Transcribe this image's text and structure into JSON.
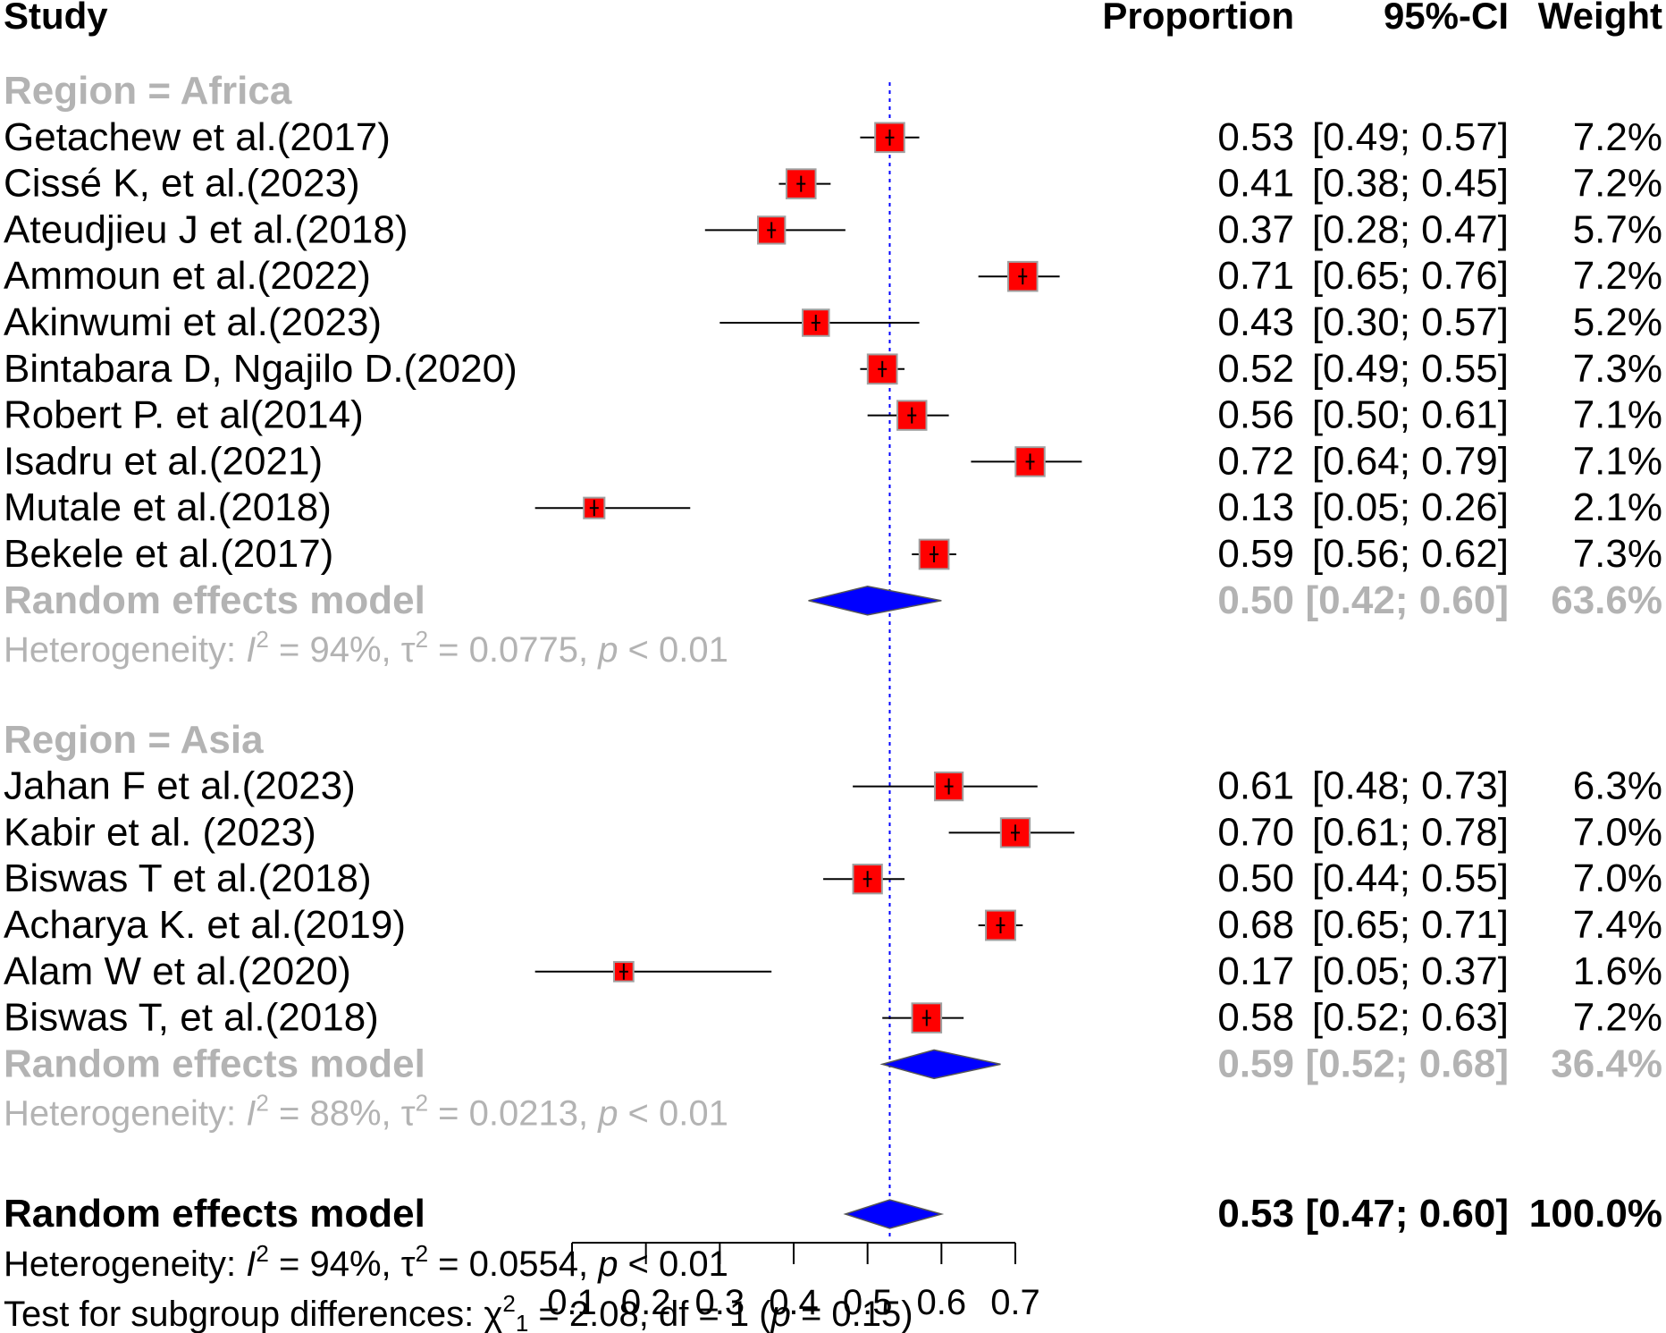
{
  "headers": {
    "study": "Study",
    "proportion": "Proportion",
    "ci": "95%-CI",
    "weight": "Weight"
  },
  "chart_data": {
    "type": "forest",
    "xlim": [
      0.1,
      0.7
    ],
    "reference_line": 0.53,
    "axis_ticks": [
      {
        "value": 0.1,
        "label": "0.1"
      },
      {
        "value": 0.2,
        "label": "0.2"
      },
      {
        "value": 0.3,
        "label": "0.3"
      },
      {
        "value": 0.4,
        "label": "0.4"
      },
      {
        "value": 0.5,
        "label": "0.5"
      },
      {
        "value": 0.6,
        "label": "0.6"
      },
      {
        "value": 0.7,
        "label": "0.7"
      }
    ],
    "groups": [
      {
        "label": "Region = Africa",
        "studies": [
          {
            "study": "Getachew et al.(2017)",
            "prop": 0.53,
            "lo": 0.49,
            "hi": 0.57,
            "prop_text": "0.53",
            "ci_text": "[0.49; 0.57]",
            "weight": 7.2,
            "weight_text": "7.2%"
          },
          {
            "study": "Cissé K, et al.(2023)",
            "prop": 0.41,
            "lo": 0.38,
            "hi": 0.45,
            "prop_text": "0.41",
            "ci_text": "[0.38; 0.45]",
            "weight": 7.2,
            "weight_text": "7.2%"
          },
          {
            "study": "Ateudjieu J et al.(2018)",
            "prop": 0.37,
            "lo": 0.28,
            "hi": 0.47,
            "prop_text": "0.37",
            "ci_text": "[0.28; 0.47]",
            "weight": 5.7,
            "weight_text": "5.7%"
          },
          {
            "study": "Ammoun et al.(2022)",
            "prop": 0.71,
            "lo": 0.65,
            "hi": 0.76,
            "prop_text": "0.71",
            "ci_text": "[0.65; 0.76]",
            "weight": 7.2,
            "weight_text": "7.2%"
          },
          {
            "study": "Akinwumi et al.(2023)",
            "prop": 0.43,
            "lo": 0.3,
            "hi": 0.57,
            "prop_text": "0.43",
            "ci_text": "[0.30; 0.57]",
            "weight": 5.2,
            "weight_text": "5.2%"
          },
          {
            "study": "Bintabara D, Ngajilo D.(2020)",
            "prop": 0.52,
            "lo": 0.49,
            "hi": 0.55,
            "prop_text": "0.52",
            "ci_text": "[0.49; 0.55]",
            "weight": 7.3,
            "weight_text": "7.3%"
          },
          {
            "study": "Robert P. et al(2014)",
            "prop": 0.56,
            "lo": 0.5,
            "hi": 0.61,
            "prop_text": "0.56",
            "ci_text": "[0.50; 0.61]",
            "weight": 7.1,
            "weight_text": "7.1%"
          },
          {
            "study": "Isadru et al.(2021)",
            "prop": 0.72,
            "lo": 0.64,
            "hi": 0.79,
            "prop_text": "0.72",
            "ci_text": "[0.64; 0.79]",
            "weight": 7.1,
            "weight_text": "7.1%"
          },
          {
            "study": "Mutale et al.(2018)",
            "prop": 0.13,
            "lo": 0.05,
            "hi": 0.26,
            "prop_text": "0.13",
            "ci_text": "[0.05; 0.26]",
            "weight": 2.1,
            "weight_text": "2.1%"
          },
          {
            "study": " Bekele et al.(2017)",
            "prop": 0.59,
            "lo": 0.56,
            "hi": 0.62,
            "prop_text": "0.59",
            "ci_text": "[0.56; 0.62]",
            "weight": 7.3,
            "weight_text": "7.3%"
          }
        ],
        "pooled": {
          "label": "Random effects model",
          "prop": 0.5,
          "lo": 0.42,
          "hi": 0.6,
          "prop_text": "0.50",
          "ci_text": "[0.42; 0.60]",
          "weight_text": "63.6%"
        },
        "heterogeneity": {
          "prefix": "Heterogeneity: ",
          "I2": "94%",
          "tau2": "0.0775",
          "p": "0.01"
        }
      },
      {
        "label": "Region = Asia",
        "studies": [
          {
            "study": "Jahan F et al.(2023)",
            "prop": 0.61,
            "lo": 0.48,
            "hi": 0.73,
            "prop_text": "0.61",
            "ci_text": "[0.48; 0.73]",
            "weight": 6.3,
            "weight_text": "6.3%"
          },
          {
            "study": "Kabir et al. (2023)",
            "prop": 0.7,
            "lo": 0.61,
            "hi": 0.78,
            "prop_text": "0.70",
            "ci_text": "[0.61; 0.78]",
            "weight": 7.0,
            "weight_text": "7.0%"
          },
          {
            "study": "Biswas T et al.(2018)",
            "prop": 0.5,
            "lo": 0.44,
            "hi": 0.55,
            "prop_text": "0.50",
            "ci_text": "[0.44; 0.55]",
            "weight": 7.0,
            "weight_text": "7.0%"
          },
          {
            "study": " Acharya K. et al.(2019)",
            "prop": 0.68,
            "lo": 0.65,
            "hi": 0.71,
            "prop_text": "0.68",
            "ci_text": "[0.65; 0.71]",
            "weight": 7.4,
            "weight_text": "7.4%"
          },
          {
            "study": "Alam W et al.(2020)",
            "prop": 0.17,
            "lo": 0.05,
            "hi": 0.37,
            "prop_text": "0.17",
            "ci_text": "[0.05; 0.37]",
            "weight": 1.6,
            "weight_text": "1.6%"
          },
          {
            "study": "Biswas T, et al.(2018)",
            "prop": 0.58,
            "lo": 0.52,
            "hi": 0.63,
            "prop_text": "0.58",
            "ci_text": "[0.52; 0.63]",
            "weight": 7.2,
            "weight_text": "7.2%"
          }
        ],
        "pooled": {
          "label": "Random effects model",
          "prop": 0.59,
          "lo": 0.52,
          "hi": 0.68,
          "prop_text": "0.59",
          "ci_text": "[0.52; 0.68]",
          "weight_text": "36.4%"
        },
        "heterogeneity": {
          "prefix": "Heterogeneity: ",
          "I2": "88%",
          "tau2": "0.0213",
          "p": "0.01"
        }
      }
    ],
    "overall": {
      "label": "Random effects model",
      "prop": 0.53,
      "lo": 0.47,
      "hi": 0.6,
      "prop_text": "0.53",
      "ci_text": "[0.47; 0.60]",
      "weight_text": "100.0%",
      "heterogeneity": {
        "prefix": "Heterogeneity: ",
        "I2": "94%",
        "tau2": "0.0554",
        "p": "0.01"
      },
      "subgroup_test": {
        "prefix": "Test for subgroup differences: ",
        "chi2": "2.08",
        "df": "1",
        "p": "0.15"
      }
    }
  }
}
